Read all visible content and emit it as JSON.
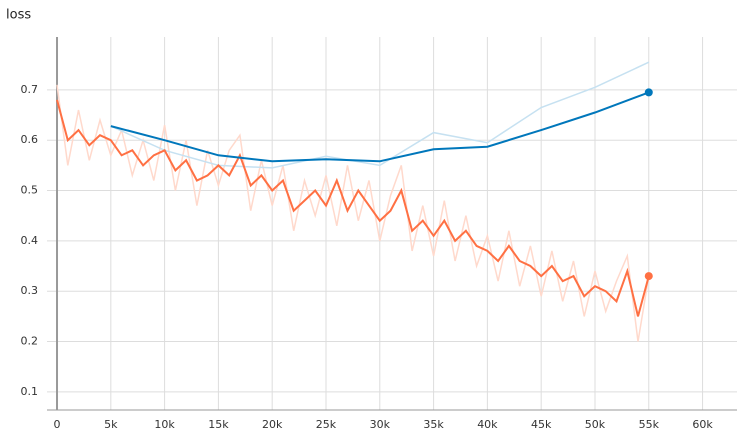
{
  "chart_data": {
    "type": "line",
    "title": "loss",
    "xlim": [
      -930,
      63200
    ],
    "ylim": [
      0.064,
      0.805
    ],
    "xticks": [
      {
        "value": 0,
        "label": "0"
      },
      {
        "value": 5000,
        "label": "5k"
      },
      {
        "value": 10000,
        "label": "10k"
      },
      {
        "value": 15000,
        "label": "15k"
      },
      {
        "value": 20000,
        "label": "20k"
      },
      {
        "value": 25000,
        "label": "25k"
      },
      {
        "value": 30000,
        "label": "30k"
      },
      {
        "value": 35000,
        "label": "35k"
      },
      {
        "value": 40000,
        "label": "40k"
      },
      {
        "value": 45000,
        "label": "45k"
      },
      {
        "value": 50000,
        "label": "50k"
      },
      {
        "value": 55000,
        "label": "55k"
      },
      {
        "value": 60000,
        "label": "60k"
      }
    ],
    "yticks": [
      0.1,
      0.2,
      0.3,
      0.4,
      0.5,
      0.6,
      0.7
    ],
    "grid": true,
    "series": [
      {
        "color": "#ffd9cc",
        "x": [
          0,
          1000,
          2000,
          3000,
          4000,
          5000,
          6000,
          7000,
          8000,
          9000,
          10000,
          11000,
          12000,
          13000,
          14000,
          15000,
          16000,
          17000,
          18000,
          19000,
          20000,
          21000,
          22000,
          23000,
          24000,
          25000,
          26000,
          27000,
          28000,
          29000,
          30000,
          31000,
          32000,
          33000,
          34000,
          35000,
          36000,
          37000,
          38000,
          39000,
          40000,
          41000,
          42000,
          43000,
          44000,
          45000,
          46000,
          47000,
          48000,
          49000,
          50000,
          51000,
          52000,
          53000,
          54000,
          55000
        ],
        "values": [
          0.71,
          0.55,
          0.66,
          0.56,
          0.64,
          0.57,
          0.62,
          0.53,
          0.6,
          0.52,
          0.63,
          0.5,
          0.6,
          0.47,
          0.58,
          0.51,
          0.58,
          0.61,
          0.46,
          0.56,
          0.47,
          0.55,
          0.42,
          0.52,
          0.45,
          0.53,
          0.43,
          0.55,
          0.44,
          0.52,
          0.4,
          0.49,
          0.55,
          0.38,
          0.47,
          0.37,
          0.48,
          0.36,
          0.45,
          0.35,
          0.41,
          0.32,
          0.42,
          0.31,
          0.39,
          0.29,
          0.38,
          0.28,
          0.36,
          0.25,
          0.34,
          0.26,
          0.32,
          0.37,
          0.2,
          0.33
        ]
      },
      {
        "color": "#c6e1f1",
        "x": [
          5000,
          10000,
          15000,
          20000,
          25000,
          30000,
          35000,
          40000,
          45000,
          50000,
          55000
        ],
        "values": [
          0.628,
          0.58,
          0.55,
          0.545,
          0.568,
          0.55,
          0.615,
          0.595,
          0.665,
          0.705,
          0.755
        ]
      },
      {
        "color": "#ff7043",
        "x": [
          0,
          1000,
          2000,
          3000,
          4000,
          5000,
          6000,
          7000,
          8000,
          9000,
          10000,
          11000,
          12000,
          13000,
          14000,
          15000,
          16000,
          17000,
          18000,
          19000,
          20000,
          21000,
          22000,
          23000,
          24000,
          25000,
          26000,
          27000,
          28000,
          29000,
          30000,
          31000,
          32000,
          33000,
          34000,
          35000,
          36000,
          37000,
          38000,
          39000,
          40000,
          41000,
          42000,
          43000,
          44000,
          45000,
          46000,
          47000,
          48000,
          49000,
          50000,
          51000,
          52000,
          53000,
          54000,
          55000
        ],
        "values": [
          0.68,
          0.6,
          0.62,
          0.59,
          0.61,
          0.6,
          0.57,
          0.58,
          0.55,
          0.57,
          0.58,
          0.54,
          0.56,
          0.52,
          0.53,
          0.55,
          0.53,
          0.57,
          0.51,
          0.53,
          0.5,
          0.52,
          0.46,
          0.48,
          0.5,
          0.47,
          0.52,
          0.46,
          0.5,
          0.47,
          0.44,
          0.46,
          0.5,
          0.42,
          0.44,
          0.41,
          0.44,
          0.4,
          0.42,
          0.39,
          0.38,
          0.36,
          0.39,
          0.36,
          0.35,
          0.33,
          0.35,
          0.32,
          0.33,
          0.29,
          0.31,
          0.3,
          0.28,
          0.34,
          0.25,
          0.33
        ]
      },
      {
        "color": "#0077bb",
        "x": [
          5000,
          10000,
          15000,
          20000,
          25000,
          30000,
          35000,
          40000,
          45000,
          50000,
          55000
        ],
        "values": [
          0.628,
          0.6,
          0.57,
          0.558,
          0.562,
          0.558,
          0.582,
          0.587,
          0.62,
          0.655,
          0.695
        ]
      }
    ]
  }
}
